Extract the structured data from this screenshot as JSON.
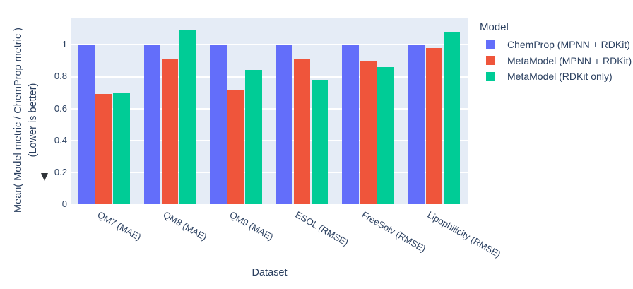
{
  "chart_data": {
    "type": "bar",
    "xlabel": "Dataset",
    "ylabel": "Mean( Model metric / ChemProp metric )",
    "ylabel_line2": "(Lower is better)",
    "legend_title": "Model",
    "legend_position": "right",
    "annotation_arrow": "down",
    "categories": [
      "QM7 (MAE)",
      "QM8 (MAE)",
      "QM9 (MAE)",
      "ESOL (RMSE)",
      "FreeSolv (RMSE)",
      "Lipophilicity (RMSE)"
    ],
    "series": [
      {
        "name": "ChemProp (MPNN + RDKit)",
        "color": "#636EFA",
        "values": [
          1.0,
          1.0,
          1.0,
          1.0,
          1.0,
          1.0
        ]
      },
      {
        "name": "MetaModel (MPNN + RDKit)",
        "color": "#EF553B",
        "values": [
          0.69,
          0.91,
          0.72,
          0.91,
          0.9,
          0.98
        ]
      },
      {
        "name": "MetaModel (RDKit only)",
        "color": "#00CC96",
        "values": [
          0.7,
          1.09,
          0.84,
          0.78,
          0.86,
          1.08
        ]
      }
    ],
    "yticks": [
      "0",
      "0.2",
      "0.4",
      "0.6",
      "0.8",
      "1"
    ],
    "ytick_values": [
      0,
      0.2,
      0.4,
      0.6,
      0.8,
      1
    ],
    "ylim": [
      0,
      1.17
    ],
    "grid": true,
    "colors": {
      "plot_bg": "#E5ECF6",
      "grid": "#FFFFFF",
      "text": "#2A3F5F",
      "arrow": "#2F3338",
      "page_bg": "#FFFFFF"
    }
  }
}
